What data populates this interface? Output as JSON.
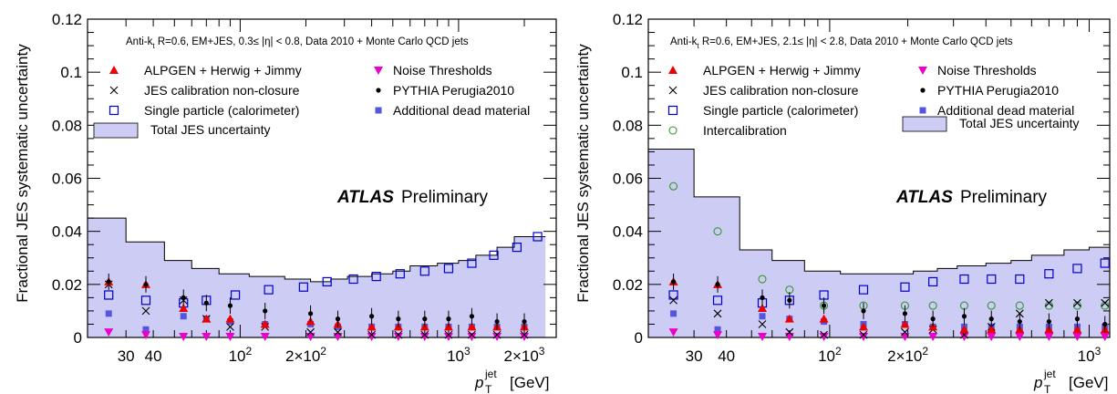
{
  "y_axis_label": "Fractional JES systematic uncertainty",
  "x_axis_label_main": "p",
  "x_axis_label_sup": "jet",
  "x_axis_label_sub": "T",
  "x_axis_label_unit": "[GeV]",
  "atlas_label": "ATLAS",
  "preliminary_label": "Preliminary",
  "colors": {
    "band_fill": "#ccccf5",
    "alpgen": "#ee0000",
    "noise": "#ee00cc",
    "single_particle": "#0000cc",
    "dead_material": "#5555dd",
    "pythia": "#000000",
    "nonclosure": "#000000",
    "intercalibration": "#339933"
  },
  "chart_data": [
    {
      "type": "scatter",
      "title": "Anti-kt R=0.6, EM+JES, 0.3 ≤ |η| < 0.8, Data 2010 + Monte Carlo QCD jets",
      "header_text": "Anti-k",
      "header_sub": "t",
      "header_rest": " R=0.6, EM+JES, 0.3≤ |η| < 0.8, Data 2010 + Monte Carlo QCD jets",
      "xlabel": "p_T^jet [GeV]",
      "ylabel": "Fractional JES systematic uncertainty",
      "xscale": "log",
      "xlim": [
        20,
        2800
      ],
      "ylim": [
        0,
        0.12
      ],
      "y_ticks": [
        "0",
        "0.02",
        "0.04",
        "0.06",
        "0.08",
        "0.1",
        "0.12"
      ],
      "x_tick_labels": [
        {
          "x": 30,
          "text": "30"
        },
        {
          "x": 40,
          "text": "40"
        },
        {
          "x": 100,
          "text": "10",
          "sup": "2"
        },
        {
          "x": 200,
          "text": "2×10",
          "sup": "2"
        },
        {
          "x": 1000,
          "text": "10",
          "sup": "3"
        },
        {
          "x": 2000,
          "text": "2×10",
          "sup": "3"
        }
      ],
      "legend": [
        {
          "key": "alpgen",
          "label": "ALPGEN + Herwig + Jimmy"
        },
        {
          "key": "nonclosure",
          "label": "JES calibration non-closure"
        },
        {
          "key": "single_particle",
          "label": "Single particle (calorimeter)"
        },
        {
          "key": "band",
          "label": "Total JES uncertainty"
        },
        {
          "key": "noise",
          "label": "Noise Thresholds"
        },
        {
          "key": "pythia",
          "label": "PYTHIA Perugia2010"
        },
        {
          "key": "dead_material",
          "label": "Additional dead material"
        }
      ],
      "band": {
        "edges": [
          20,
          30,
          45,
          60,
          80,
          110,
          160,
          210,
          260,
          310,
          400,
          500,
          600,
          800,
          1000,
          1200,
          1500,
          1800,
          2500
        ],
        "values": [
          0.045,
          0.036,
          0.029,
          0.026,
          0.024,
          0.023,
          0.022,
          0.021,
          0.022,
          0.023,
          0.024,
          0.025,
          0.027,
          0.028,
          0.029,
          0.031,
          0.034,
          0.038
        ]
      },
      "series": [
        {
          "key": "alpgen",
          "x": [
            25,
            37,
            55,
            70,
            90,
            130,
            210,
            280,
            400,
            530,
            700,
            900,
            1150,
            1500,
            2000
          ],
          "y": [
            0.021,
            0.02,
            0.011,
            0.007,
            0.007,
            0.005,
            0.006,
            0.005,
            0.004,
            0.004,
            0.004,
            0.004,
            0.004,
            0.004,
            0.004
          ]
        },
        {
          "key": "nonclosure",
          "x": [
            25,
            37,
            55,
            70,
            90,
            130,
            210,
            280,
            400,
            530,
            700,
            900,
            1150,
            1500,
            2000
          ],
          "y": [
            0.02,
            0.01,
            0.014,
            0.007,
            0.004,
            0.004,
            0.002,
            0.002,
            0.001,
            0.001,
            0.001,
            0.001,
            0.001,
            0.001,
            0.001
          ]
        },
        {
          "key": "single_particle",
          "x": [
            25,
            37,
            55,
            70,
            95,
            135,
            195,
            250,
            330,
            420,
            540,
            700,
            900,
            1150,
            1450,
            1850,
            2300
          ],
          "y": [
            0.016,
            0.014,
            0.013,
            0.014,
            0.016,
            0.018,
            0.019,
            0.021,
            0.022,
            0.023,
            0.024,
            0.025,
            0.026,
            0.028,
            0.031,
            0.034,
            0.038
          ]
        },
        {
          "key": "noise",
          "x": [
            25,
            37,
            55,
            70,
            90,
            130,
            210,
            280,
            400,
            530,
            700,
            900,
            1150,
            1500,
            2000
          ],
          "y": [
            0.002,
            0.001,
            0.0,
            0.0,
            0.0,
            0.0,
            0.0,
            0.0,
            0.0,
            0.0,
            0.0,
            0.0,
            0.0,
            0.0,
            0.0
          ]
        },
        {
          "key": "pythia",
          "x": [
            25,
            37,
            55,
            70,
            90,
            130,
            210,
            280,
            400,
            530,
            700,
            900,
            1150,
            1500,
            2000
          ],
          "y": [
            0.021,
            0.02,
            0.015,
            0.013,
            0.012,
            0.01,
            0.009,
            0.007,
            0.008,
            0.007,
            0.007,
            0.007,
            0.008,
            0.006,
            0.006
          ]
        },
        {
          "key": "dead_material",
          "x": [
            25,
            37,
            55,
            70,
            90,
            130,
            210,
            280,
            400,
            530,
            700,
            900,
            1150,
            1500,
            2000
          ],
          "y": [
            0.009,
            0.003,
            0.008,
            0.007,
            0.006,
            0.005,
            0.005,
            0.004,
            0.004,
            0.004,
            0.004,
            0.004,
            0.004,
            0.004,
            0.004
          ]
        }
      ]
    },
    {
      "type": "scatter",
      "title": "Anti-kt R=0.6, EM+JES, 2.1 ≤ |η| < 2.8, Data 2010 + Monte Carlo QCD jets",
      "header_text": "Anti-k",
      "header_sub": "t",
      "header_rest": " R=0.6, EM+JES, 2.1≤ |η| < 2.8, Data 2010 + Monte Carlo QCD jets",
      "xlabel": "p_T^jet [GeV]",
      "ylabel": "Fractional JES systematic uncertainty",
      "xscale": "log",
      "xlim": [
        20,
        1200
      ],
      "ylim": [
        0,
        0.12
      ],
      "y_ticks": [
        "0",
        "0.02",
        "0.04",
        "0.06",
        "0.08",
        "0.1",
        "0.12"
      ],
      "x_tick_labels": [
        {
          "x": 30,
          "text": "30"
        },
        {
          "x": 40,
          "text": "40"
        },
        {
          "x": 100,
          "text": "10",
          "sup": "2"
        },
        {
          "x": 200,
          "text": "2×10",
          "sup": "2"
        },
        {
          "x": 1000,
          "text": "10",
          "sup": "3"
        }
      ],
      "legend": [
        {
          "key": "alpgen",
          "label": "ALPGEN + Herwig + Jimmy"
        },
        {
          "key": "nonclosure",
          "label": "JES calibration non-closure"
        },
        {
          "key": "single_particle",
          "label": "Single particle (calorimeter)"
        },
        {
          "key": "intercalibration",
          "label": "Intercalibration"
        },
        {
          "key": "noise",
          "label": "Noise Thresholds"
        },
        {
          "key": "pythia",
          "label": "PYTHIA Perugia2010"
        },
        {
          "key": "dead_material",
          "label": "Additional dead material"
        },
        {
          "key": "band",
          "label": "Total JES uncertainty"
        }
      ],
      "band": {
        "edges": [
          20,
          30,
          45,
          60,
          80,
          110,
          160,
          210,
          260,
          310,
          400,
          500,
          600,
          800,
          1000,
          1200
        ],
        "values": [
          0.071,
          0.053,
          0.033,
          0.029,
          0.025,
          0.024,
          0.024,
          0.025,
          0.026,
          0.027,
          0.028,
          0.029,
          0.031,
          0.033,
          0.034
        ]
      },
      "series": [
        {
          "key": "alpgen",
          "x": [
            25,
            37,
            55,
            70,
            95,
            135,
            195,
            250,
            330,
            420,
            540,
            700,
            900,
            1150
          ],
          "y": [
            0.021,
            0.02,
            0.011,
            0.007,
            0.007,
            0.004,
            0.005,
            0.004,
            0.003,
            0.003,
            0.003,
            0.003,
            0.003,
            0.003
          ]
        },
        {
          "key": "nonclosure",
          "x": [
            25,
            37,
            55,
            70,
            95,
            135,
            195,
            250,
            330,
            420,
            540,
            700,
            900,
            1150
          ],
          "y": [
            0.014,
            0.009,
            0.005,
            0.002,
            0.001,
            0.001,
            0.002,
            0.003,
            0.001,
            0.004,
            0.009,
            0.013,
            0.013,
            0.013
          ]
        },
        {
          "key": "single_particle",
          "x": [
            25,
            37,
            55,
            70,
            95,
            135,
            195,
            250,
            330,
            420,
            540,
            700,
            900,
            1150
          ],
          "y": [
            0.016,
            0.014,
            0.013,
            0.014,
            0.016,
            0.018,
            0.019,
            0.021,
            0.022,
            0.022,
            0.022,
            0.024,
            0.026,
            0.028
          ]
        },
        {
          "key": "intercalibration",
          "x": [
            25,
            37,
            55,
            70,
            95,
            135,
            195,
            250,
            330,
            420,
            540,
            700,
            900,
            1150
          ],
          "y": [
            0.057,
            0.04,
            0.022,
            0.018,
            0.012,
            0.012,
            0.012,
            0.012,
            0.012,
            0.012,
            0.012,
            0.012,
            0.012,
            0.012
          ]
        },
        {
          "key": "noise",
          "x": [
            25,
            37,
            55,
            70,
            95,
            135,
            195,
            250,
            330,
            420,
            540,
            700,
            900,
            1150
          ],
          "y": [
            0.002,
            0.001,
            0.0,
            0.0,
            0.0,
            0.0,
            0.0,
            0.0,
            0.0,
            0.0,
            0.0,
            0.0,
            0.0,
            0.0
          ]
        },
        {
          "key": "pythia",
          "x": [
            25,
            37,
            55,
            70,
            95,
            135,
            195,
            250,
            330,
            420,
            540,
            700,
            900,
            1150
          ],
          "y": [
            0.021,
            0.02,
            0.015,
            0.014,
            0.012,
            0.01,
            0.009,
            0.007,
            0.008,
            0.007,
            0.006,
            0.006,
            0.007,
            0.005
          ]
        },
        {
          "key": "dead_material",
          "x": [
            25,
            37,
            55,
            70,
            95,
            135,
            195,
            250,
            330,
            420,
            540,
            700,
            900,
            1150
          ],
          "y": [
            0.009,
            0.003,
            0.008,
            0.007,
            0.006,
            0.005,
            0.005,
            0.004,
            0.004,
            0.004,
            0.004,
            0.004,
            0.004,
            0.004
          ]
        }
      ]
    }
  ]
}
